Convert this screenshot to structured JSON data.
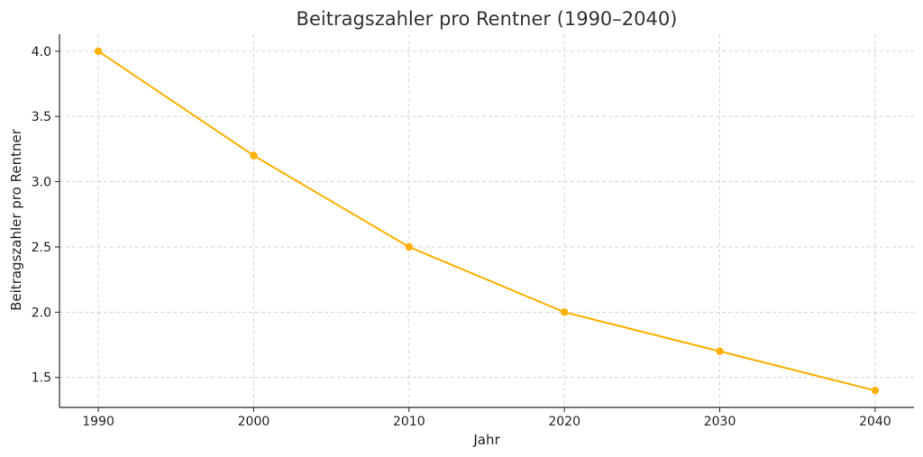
{
  "chart_data": {
    "type": "line",
    "title": "Beitragszahler pro Rentner (1990–2040)",
    "xlabel": "Jahr",
    "ylabel": "Beitragszahler pro Rentner",
    "x": [
      1990,
      2000,
      2010,
      2020,
      2030,
      2040
    ],
    "series": [
      {
        "values": [
          4.0,
          3.2,
          2.5,
          2.0,
          1.7,
          1.4
        ],
        "color": "#FFB000",
        "marker": "circle"
      }
    ],
    "xlim": [
      1987.5,
      2042.5
    ],
    "ylim": [
      1.27,
      4.13
    ],
    "xticks": [
      "1990",
      "2000",
      "2010",
      "2020",
      "2030",
      "2040"
    ],
    "yticks": [
      "1.5",
      "2.0",
      "2.5",
      "3.0",
      "3.5",
      "4.0"
    ],
    "grid": true,
    "grid_style": "dashed",
    "legend": "none"
  }
}
